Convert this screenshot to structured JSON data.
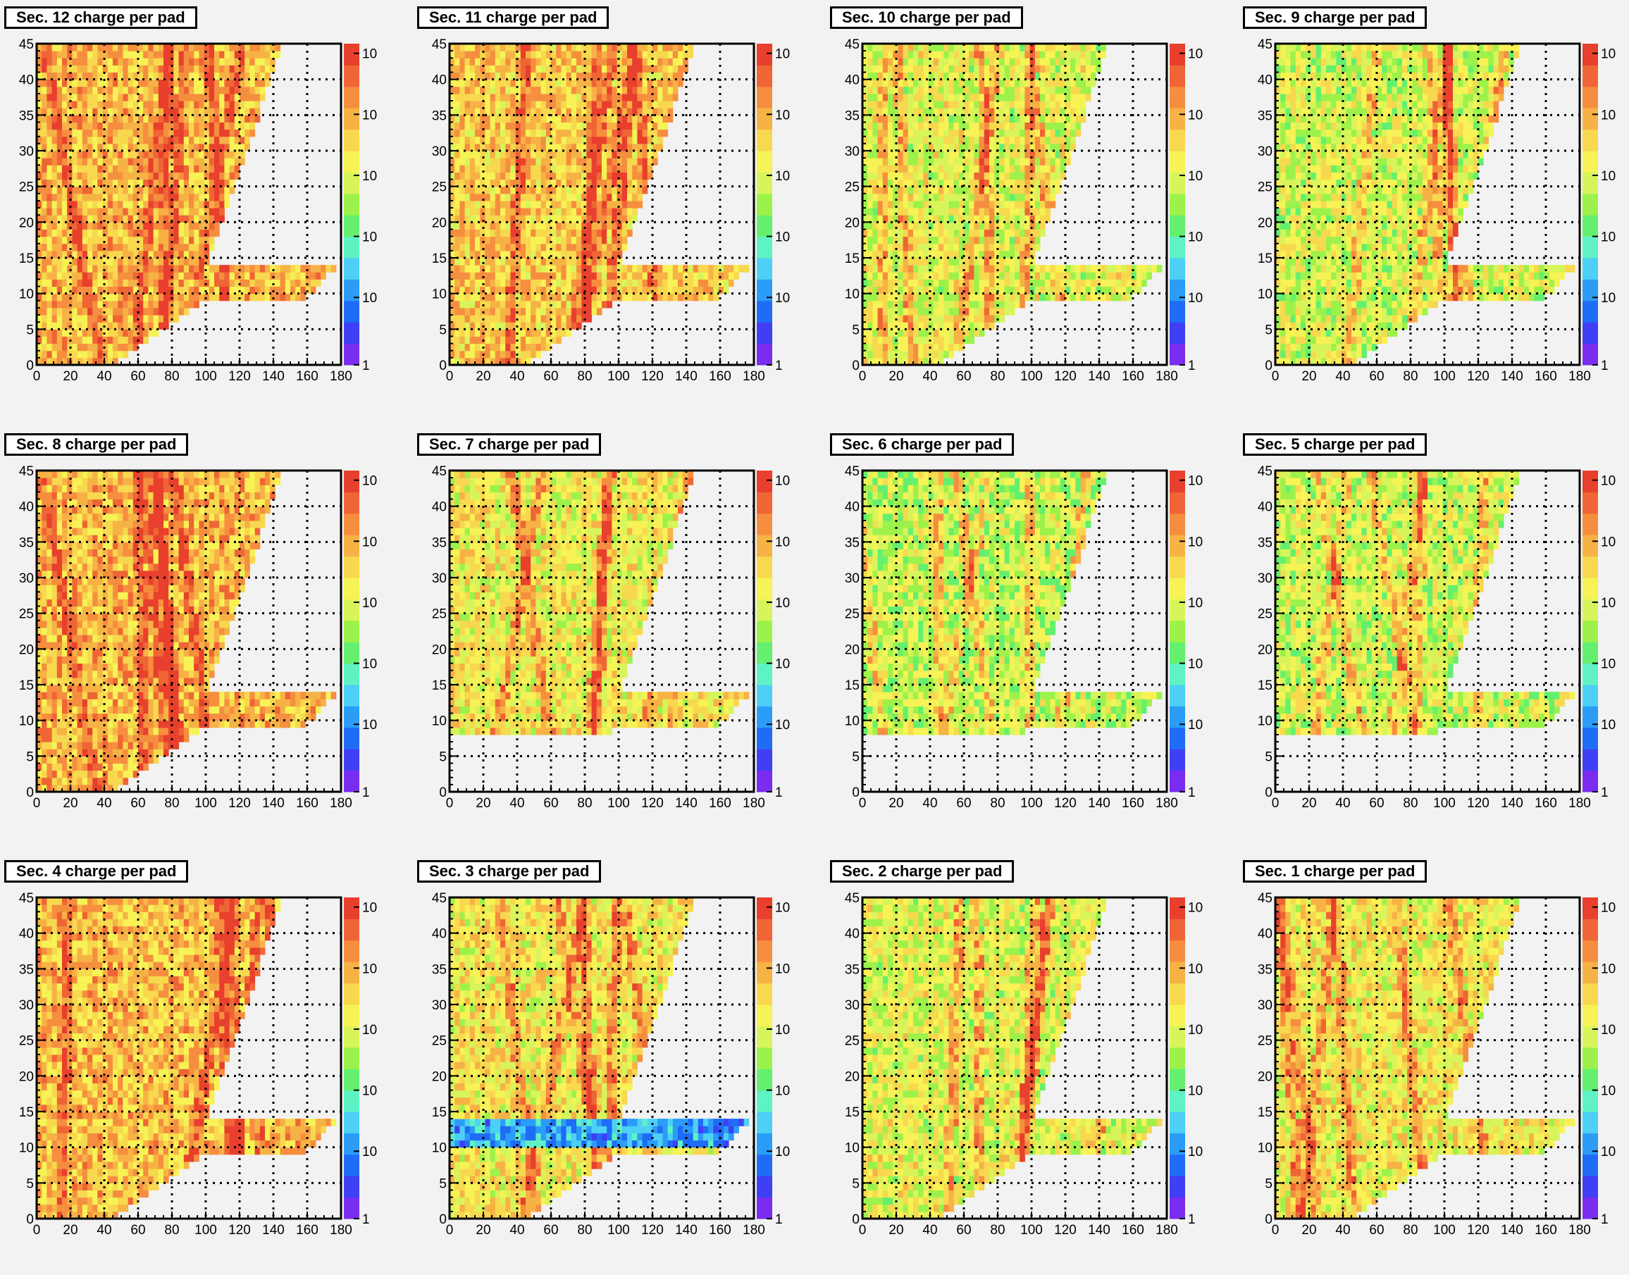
{
  "canvas": {
    "background": "#f2f2f2",
    "frame_color": "#f2f2f2",
    "grid": "dotted"
  },
  "palette": [
    "#7a2cf0",
    "#3f3ff5",
    "#1f6cf7",
    "#2b9cf7",
    "#4ecff5",
    "#5ef2c4",
    "#64f06e",
    "#9cf24a",
    "#d7f55a",
    "#f7f255",
    "#f7d84e",
    "#f7b246",
    "#f68e3f",
    "#ef6535",
    "#e8402d"
  ],
  "axes": {
    "x": {
      "min": 0,
      "max": 180,
      "ticks": [
        "0",
        "20",
        "40",
        "60",
        "80",
        "100",
        "120",
        "140",
        "160",
        "180"
      ]
    },
    "y": {
      "min": 0,
      "max": 45,
      "ticks": [
        "0",
        "5",
        "10",
        "15",
        "20",
        "25",
        "30",
        "35",
        "40",
        "45"
      ]
    },
    "z": {
      "labels": [
        "1",
        "10",
        "10",
        "10",
        "10",
        "10"
      ]
    }
  },
  "chart_data": [
    {
      "type": "heatmap",
      "title": "Sec. 12 charge per pad",
      "xlim": [
        0,
        180
      ],
      "ylim": [
        0,
        45
      ],
      "level": 0.75,
      "pattern": "tracks"
    },
    {
      "type": "heatmap",
      "title": "Sec. 11 charge per pad",
      "xlim": [
        0,
        180
      ],
      "ylim": [
        0,
        45
      ],
      "level": 0.72,
      "pattern": "tracks"
    },
    {
      "type": "heatmap",
      "title": "Sec. 10 charge per pad",
      "xlim": [
        0,
        180
      ],
      "ylim": [
        0,
        45
      ],
      "level": 0.6,
      "pattern": "tracks"
    },
    {
      "type": "heatmap",
      "title": "Sec. 9 charge per pad",
      "xlim": [
        0,
        180
      ],
      "ylim": [
        0,
        45
      ],
      "level": 0.58,
      "pattern": "tracks"
    },
    {
      "type": "heatmap",
      "title": "Sec. 8 charge per pad",
      "xlim": [
        0,
        180
      ],
      "ylim": [
        0,
        45
      ],
      "level": 0.76,
      "pattern": "tracks"
    },
    {
      "type": "heatmap",
      "title": "Sec. 7 charge per pad",
      "xlim": [
        0,
        180
      ],
      "ylim": [
        0,
        45
      ],
      "level": 0.64,
      "pattern": "upper-only"
    },
    {
      "type": "heatmap",
      "title": "Sec. 6 charge per pad",
      "xlim": [
        0,
        180
      ],
      "ylim": [
        0,
        45
      ],
      "level": 0.55,
      "pattern": "upper-only"
    },
    {
      "type": "heatmap",
      "title": "Sec. 5 charge per pad",
      "xlim": [
        0,
        180
      ],
      "ylim": [
        0,
        45
      ],
      "level": 0.57,
      "pattern": "upper-only-diagonal"
    },
    {
      "type": "heatmap",
      "title": "Sec. 4 charge per pad",
      "xlim": [
        0,
        180
      ],
      "ylim": [
        0,
        45
      ],
      "level": 0.74,
      "pattern": "tracks"
    },
    {
      "type": "heatmap",
      "title": "Sec. 3 charge per pad",
      "xlim": [
        0,
        180
      ],
      "ylim": [
        0,
        45
      ],
      "level": 0.65,
      "pattern": "low-band-rows-9-14"
    },
    {
      "type": "heatmap",
      "title": "Sec. 2 charge per pad",
      "xlim": [
        0,
        180
      ],
      "ylim": [
        0,
        45
      ],
      "level": 0.6,
      "pattern": "tracks"
    },
    {
      "type": "heatmap",
      "title": "Sec. 1 charge per pad",
      "xlim": [
        0,
        180
      ],
      "ylim": [
        0,
        45
      ],
      "level": 0.64,
      "pattern": "tracks"
    }
  ]
}
